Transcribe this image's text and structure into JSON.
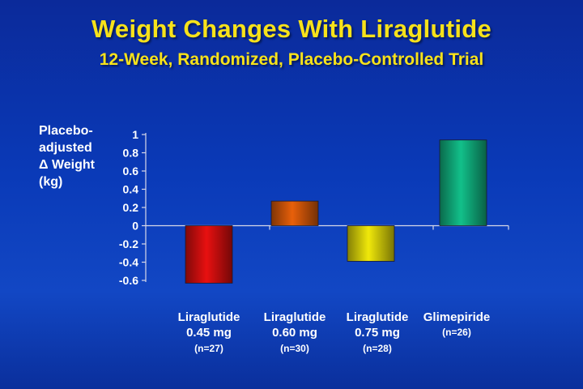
{
  "title": "Weight Changes With Liraglutide",
  "subtitle": "12-Week, Randomized, Placebo-Controlled Trial",
  "chart_data": {
    "type": "bar",
    "ylabel_lines": [
      "Placebo-",
      "adjusted",
      "Δ Weight",
      "(kg)"
    ],
    "ylim": [
      -0.6,
      1
    ],
    "yticks": [
      "1",
      "0.8",
      "0.6",
      "0.4",
      "0.2",
      "0",
      "-0.2",
      "-0.4",
      "-0.6"
    ],
    "grid": false,
    "categories": [
      {
        "name": "Liraglutide",
        "dose": "0.45 mg",
        "n": "(n=27)"
      },
      {
        "name": "Liraglutide",
        "dose": "0.60 mg",
        "n": "(n=30)"
      },
      {
        "name": "Liraglutide",
        "dose": "0.75 mg",
        "n": "(n=28)"
      },
      {
        "name": "Glimepiride",
        "dose": "",
        "n": "(n=26)"
      }
    ],
    "values": [
      -0.63,
      0.27,
      -0.39,
      0.94
    ],
    "colors": [
      "#e81010",
      "#e8600a",
      "#f0e80a",
      "#12c08a"
    ]
  }
}
